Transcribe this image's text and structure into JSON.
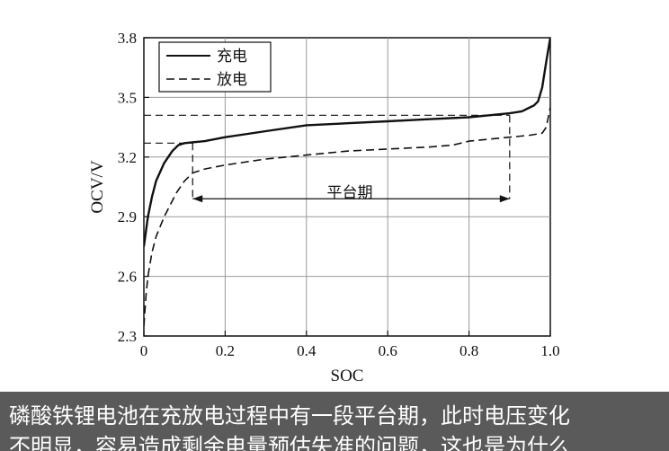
{
  "chart_data": {
    "type": "line",
    "xlabel": "SOC",
    "ylabel": "OCV/V",
    "xlim": [
      0,
      1.0
    ],
    "ylim": [
      2.3,
      3.8
    ],
    "xticks": [
      "0",
      "0.2",
      "0.4",
      "0.6",
      "0.8",
      "1.0"
    ],
    "yticks": [
      "2.3",
      "2.6",
      "2.9",
      "3.2",
      "3.5",
      "3.8"
    ],
    "grid": true,
    "legend_position": "top-left",
    "series": [
      {
        "name": "充电",
        "style": "solid",
        "x": [
          0,
          0.01,
          0.02,
          0.03,
          0.05,
          0.07,
          0.085,
          0.1,
          0.15,
          0.2,
          0.3,
          0.4,
          0.5,
          0.6,
          0.7,
          0.8,
          0.85,
          0.9,
          0.93,
          0.95,
          0.96,
          0.97,
          0.98,
          0.99,
          1.0
        ],
        "y": [
          2.75,
          2.9,
          3.0,
          3.08,
          3.17,
          3.23,
          3.26,
          3.27,
          3.28,
          3.3,
          3.33,
          3.36,
          3.37,
          3.38,
          3.39,
          3.4,
          3.41,
          3.42,
          3.43,
          3.45,
          3.46,
          3.48,
          3.55,
          3.68,
          3.8
        ]
      },
      {
        "name": "放电",
        "style": "dashed",
        "x": [
          0,
          0.005,
          0.01,
          0.02,
          0.03,
          0.05,
          0.08,
          0.1,
          0.12,
          0.15,
          0.2,
          0.3,
          0.4,
          0.5,
          0.6,
          0.7,
          0.76,
          0.8,
          0.85,
          0.9,
          0.95,
          0.98,
          0.99,
          1.0
        ],
        "y": [
          2.35,
          2.5,
          2.6,
          2.72,
          2.8,
          2.9,
          3.02,
          3.08,
          3.12,
          3.14,
          3.16,
          3.19,
          3.21,
          3.23,
          3.24,
          3.25,
          3.26,
          3.28,
          3.29,
          3.3,
          3.31,
          3.32,
          3.35,
          3.45
        ]
      }
    ],
    "annotations": {
      "platform_label": "平台期",
      "platform_range": [
        0.12,
        0.9
      ],
      "platform_arrow_y": 2.99,
      "ref_lines": [
        {
          "y": 3.41,
          "x_to": 0.9,
          "drop_to": 2.99
        },
        {
          "y": 3.27,
          "x_to": 0.12,
          "drop_to": 2.99
        }
      ]
    }
  },
  "caption": {
    "line1": "磷酸铁锂电池在充放电过程中有一段平台期，此时电压变化",
    "line2": "不明显，容易造成剩余电量预估失准的问题，这也是为什么"
  }
}
